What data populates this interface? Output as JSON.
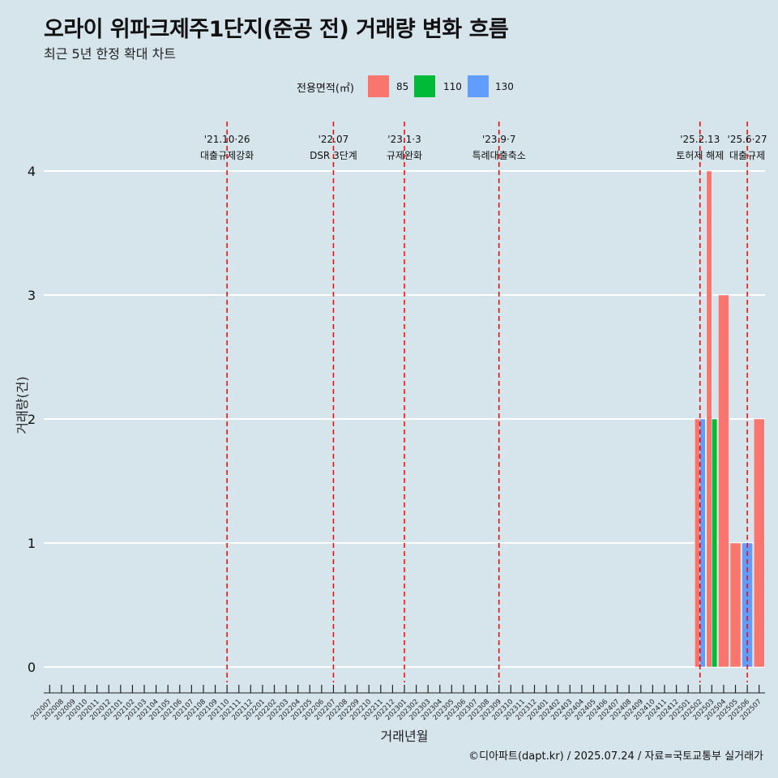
{
  "title": "오라이 위파크제주1단지(준공 전) 거래량 변화 흐름",
  "subtitle": "최근 5년 한정 확대 차트",
  "caption": "©디아파트(dapt.kr) / 2025.07.24 / 자료=국토교통부 실거래가",
  "legend": {
    "title": "전용면적(㎡)",
    "items": [
      {
        "label": "85",
        "color": "#f8766d"
      },
      {
        "label": "110",
        "color": "#00ba38"
      },
      {
        "label": "130",
        "color": "#619cff"
      }
    ]
  },
  "chart_data": {
    "type": "bar",
    "xlabel": "거래년월",
    "ylabel": "거래량(건)",
    "ylim": [
      0,
      4
    ],
    "yticks": [
      0,
      1,
      2,
      3,
      4
    ],
    "grid": true,
    "categories": [
      "202007",
      "202008",
      "202009",
      "202010",
      "202011",
      "202012",
      "202101",
      "202102",
      "202103",
      "202104",
      "202105",
      "202106",
      "202107",
      "202108",
      "202109",
      "202110",
      "202111",
      "202112",
      "202201",
      "202202",
      "202203",
      "202204",
      "202205",
      "202206",
      "202207",
      "202208",
      "202209",
      "202210",
      "202211",
      "202212",
      "202301",
      "202302",
      "202303",
      "202304",
      "202305",
      "202306",
      "202307",
      "202308",
      "202309",
      "202310",
      "202311",
      "202312",
      "202401",
      "202402",
      "202403",
      "202404",
      "202405",
      "202406",
      "202407",
      "202408",
      "202409",
      "202410",
      "202411",
      "202412",
      "202501",
      "202502",
      "202503",
      "202504",
      "202505",
      "202506",
      "202507"
    ],
    "series": [
      {
        "name": "85",
        "color": "#f8766d",
        "values": {
          "202502": 2,
          "202503": 4,
          "202504": 3,
          "202505": 1,
          "202507": 2
        }
      },
      {
        "name": "110",
        "color": "#00ba38",
        "values": {
          "202503": 2
        }
      },
      {
        "name": "130",
        "color": "#619cff",
        "values": {
          "202502": 2,
          "202506": 1
        }
      }
    ],
    "stacking": "dodge",
    "events": [
      {
        "category": "202110",
        "date": "'21.10·26",
        "label": "대출규제강화"
      },
      {
        "category": "202207",
        "date": "'22.07",
        "label": "DSR 3단계"
      },
      {
        "category": "202301",
        "date": "'23.1·3",
        "label": "규제완화"
      },
      {
        "category": "202309",
        "date": "'23.9·7",
        "label": "특례대출축소"
      },
      {
        "category": "202502",
        "date": "'25.2.13",
        "label": "토허제 해제"
      },
      {
        "category": "202506",
        "date": "'25.6·27",
        "label": "대출규제"
      }
    ]
  }
}
